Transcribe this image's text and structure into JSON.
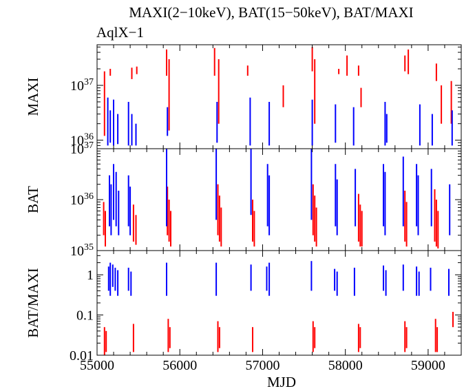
{
  "title": "MAXI(2−10keV), BAT(15−50keV), BAT/MAXI",
  "subtitle": "AqlX−1",
  "colors": {
    "red": "#ff0000",
    "blue": "#0000ff",
    "light_blue": "#8c8cff"
  },
  "chart_data": [
    {
      "type": "line",
      "panel": "top",
      "ylabel": "MAXI",
      "yscale": "log",
      "ylim": [
        7e+35,
        5.5e+37
      ],
      "yticks": [
        {
          "base": "10",
          "exp": "36",
          "value": 1e+36
        },
        {
          "base": "10",
          "exp": "37",
          "value": 1e+37
        }
      ],
      "xlim": [
        55000,
        59400
      ],
      "series": [
        {
          "color": "red",
          "segments": [
            [
              55090,
              1.2e+36,
              1.8e+37
            ],
            [
              55160,
              1.5e+37,
              2e+37
            ],
            [
              55420,
              1.3e+37,
              2.1e+37
            ],
            [
              55480,
              1.6e+37,
              2.2e+37
            ],
            [
              55840,
              1.5e+37,
              4.5e+37
            ],
            [
              55870,
              1.5e+36,
              3e+37
            ],
            [
              56420,
              1.5e+37,
              4.8e+37
            ],
            [
              56470,
              2e+36,
              3e+37
            ],
            [
              56820,
              1.5e+37,
              2.3e+37
            ],
            [
              57250,
              4e+36,
              1e+37
            ],
            [
              57600,
              1.8e+37,
              5e+37
            ],
            [
              57630,
              2e+36,
              3e+37
            ],
            [
              57920,
              1.6e+37,
              2e+37
            ],
            [
              58020,
              1.5e+37,
              3.5e+37
            ],
            [
              58160,
              1.5e+37,
              2.3e+37
            ],
            [
              58190,
              4e+36,
              9e+36
            ],
            [
              58720,
              1.8e+37,
              3.5e+37
            ],
            [
              58760,
              1.6e+37,
              4.5e+37
            ],
            [
              59100,
              1.2e+37,
              2.5e+37
            ],
            [
              59160,
              2e+36,
              1e+37
            ],
            [
              59280,
              2e+36,
              1.2e+37
            ]
          ]
        },
        {
          "color": "blue",
          "segments": [
            [
              55130,
              8e+35,
              6e+36
            ],
            [
              55160,
              9e+35,
              3.5e+36
            ],
            [
              55200,
              8e+35,
              5.5e+36
            ],
            [
              55250,
              8.5e+35,
              3e+36
            ],
            [
              55380,
              8e+35,
              5e+36
            ],
            [
              55420,
              8e+35,
              3e+36
            ],
            [
              55470,
              8e+35,
              2e+36
            ],
            [
              55850,
              1.2e+36,
              4e+36
            ],
            [
              56450,
              9e+35,
              5e+36
            ],
            [
              56850,
              8e+35,
              6e+36
            ],
            [
              57080,
              8e+35,
              5e+36
            ],
            [
              57600,
              8e+35,
              5.5e+36
            ],
            [
              57880,
              9e+35,
              4.5e+36
            ],
            [
              58100,
              8e+35,
              4e+36
            ],
            [
              58480,
              8e+35,
              5e+36
            ],
            [
              58500,
              9e+35,
              3e+36
            ],
            [
              58900,
              8e+35,
              4.5e+36
            ],
            [
              59050,
              8e+35,
              3e+36
            ],
            [
              59290,
              8e+35,
              3.5e+36
            ]
          ]
        }
      ]
    },
    {
      "type": "line",
      "panel": "middle",
      "ylabel": "BAT",
      "yscale": "log",
      "ylim": [
        1e+35,
        1e+37
      ],
      "yticks": [
        {
          "base": "10",
          "exp": "35",
          "value": 1e+35
        },
        {
          "base": "10",
          "exp": "36",
          "value": 1e+36
        },
        {
          "base": "10",
          "exp": "37",
          "value": 1e+37
        }
      ],
      "xlim": [
        55000,
        59400
      ],
      "series": [
        {
          "color": "red",
          "segments": [
            [
              55080,
              2e+35,
              9e+35
            ],
            [
              55100,
              1.2e+35,
              6e+35
            ],
            [
              55440,
              1.5e+35,
              8e+35
            ],
            [
              55470,
              1.3e+35,
              5e+35
            ],
            [
              55850,
              2e+35,
              1.8e+36
            ],
            [
              55870,
              1.5e+35,
              1e+36
            ],
            [
              55890,
              1.2e+35,
              6e+35
            ],
            [
              56460,
              2e+35,
              2e+36
            ],
            [
              56480,
              1.5e+35,
              1.2e+36
            ],
            [
              56500,
              1.2e+35,
              7e+35
            ],
            [
              56880,
              1.5e+35,
              1e+36
            ],
            [
              56900,
              1.2e+35,
              6e+35
            ],
            [
              57610,
              2e+35,
              2e+36
            ],
            [
              57630,
              1.5e+35,
              1.2e+36
            ],
            [
              57650,
              1.2e+35,
              7e+35
            ],
            [
              58160,
              1.5e+35,
              1.3e+36
            ],
            [
              58180,
              1.2e+35,
              8e+35
            ],
            [
              58200,
              1.2e+35,
              6e+35
            ],
            [
              58720,
              1.5e+35,
              1.5e+36
            ],
            [
              58740,
              1.2e+35,
              9e+35
            ],
            [
              59080,
              1.5e+35,
              1.6e+36
            ],
            [
              59100,
              1.2e+35,
              1e+36
            ],
            [
              59120,
              1.1e+35,
              6e+35
            ]
          ]
        },
        {
          "color": "blue",
          "segments": [
            [
              55150,
              3e+35,
              3e+36
            ],
            [
              55170,
              2e+35,
              2e+36
            ],
            [
              55200,
              4e+35,
              5e+36
            ],
            [
              55230,
              3e+35,
              3.5e+36
            ],
            [
              55260,
              2e+35,
              1.5e+36
            ],
            [
              55380,
              3e+35,
              3e+36
            ],
            [
              55400,
              2e+35,
              1.8e+36
            ],
            [
              55840,
              3e+35,
              1e+37
            ],
            [
              56440,
              4e+35,
              1e+37
            ],
            [
              56860,
              5e+35,
              1e+37
            ],
            [
              57060,
              3e+35,
              5e+36
            ],
            [
              57080,
              2e+35,
              3e+36
            ],
            [
              57590,
              4e+35,
              1e+37
            ],
            [
              57880,
              3e+35,
              5e+36
            ],
            [
              57900,
              2e+35,
              2.5e+36
            ],
            [
              58120,
              3e+35,
              4e+36
            ],
            [
              58460,
              3e+35,
              5e+36
            ],
            [
              58480,
              2e+35,
              3.5e+36
            ],
            [
              58700,
              3e+35,
              7e+36
            ],
            [
              58860,
              3e+35,
              5e+36
            ],
            [
              58880,
              2e+35,
              3e+36
            ],
            [
              59040,
              3e+35,
              4e+36
            ],
            [
              59260,
              2e+35,
              2e+36
            ]
          ]
        }
      ]
    },
    {
      "type": "line",
      "panel": "bottom",
      "ylabel": "BAT/MAXI",
      "xlabel": "MJD",
      "yscale": "log",
      "ylim": [
        0.01,
        4
      ],
      "yticks": [
        {
          "label": "0.01",
          "value": 0.01
        },
        {
          "label": "0.1",
          "value": 0.1
        },
        {
          "label": "1",
          "value": 1
        }
      ],
      "xlim": [
        55000,
        59400
      ],
      "xticks": [
        55000,
        56000,
        57000,
        58000,
        59000
      ],
      "series": [
        {
          "color": "blue",
          "segments": [
            [
              55140,
              0.4,
              1.6
            ],
            [
              55160,
              0.3,
              2.0
            ],
            [
              55190,
              0.5,
              1.8
            ],
            [
              55220,
              0.4,
              1.5
            ],
            [
              55250,
              0.3,
              1.3
            ],
            [
              55380,
              0.4,
              1.5
            ],
            [
              55410,
              0.3,
              1.2
            ],
            [
              55840,
              0.3,
              2.0
            ],
            [
              56440,
              0.3,
              2.0
            ],
            [
              56860,
              0.4,
              1.8
            ],
            [
              57050,
              0.4,
              1.6
            ],
            [
              57080,
              0.3,
              2.0
            ],
            [
              57590,
              0.4,
              2.2
            ],
            [
              57870,
              0.4,
              1.4
            ],
            [
              57900,
              0.3,
              1.2
            ],
            [
              58110,
              0.3,
              1.5
            ],
            [
              58460,
              0.4,
              1.7
            ],
            [
              58490,
              0.3,
              1.3
            ],
            [
              58700,
              0.4,
              1.8
            ],
            [
              58860,
              0.3,
              1.6
            ],
            [
              58890,
              0.3,
              1.2
            ],
            [
              59030,
              0.4,
              1.5
            ],
            [
              59250,
              0.3,
              1.4
            ]
          ]
        },
        {
          "color": "red",
          "segments": [
            [
              55090,
              0.01,
              0.05
            ],
            [
              55110,
              0.012,
              0.04
            ],
            [
              55440,
              0.012,
              0.06
            ],
            [
              55860,
              0.012,
              0.08
            ],
            [
              55880,
              0.015,
              0.05
            ],
            [
              56460,
              0.012,
              0.07
            ],
            [
              56480,
              0.015,
              0.05
            ],
            [
              56880,
              0.012,
              0.05
            ],
            [
              57610,
              0.012,
              0.07
            ],
            [
              57630,
              0.015,
              0.05
            ],
            [
              58160,
              0.012,
              0.06
            ],
            [
              58180,
              0.015,
              0.05
            ],
            [
              58720,
              0.012,
              0.07
            ],
            [
              58740,
              0.015,
              0.05
            ],
            [
              59090,
              0.012,
              0.08
            ],
            [
              59110,
              0.012,
              0.05
            ],
            [
              59300,
              0.05,
              0.12
            ]
          ]
        }
      ]
    }
  ]
}
